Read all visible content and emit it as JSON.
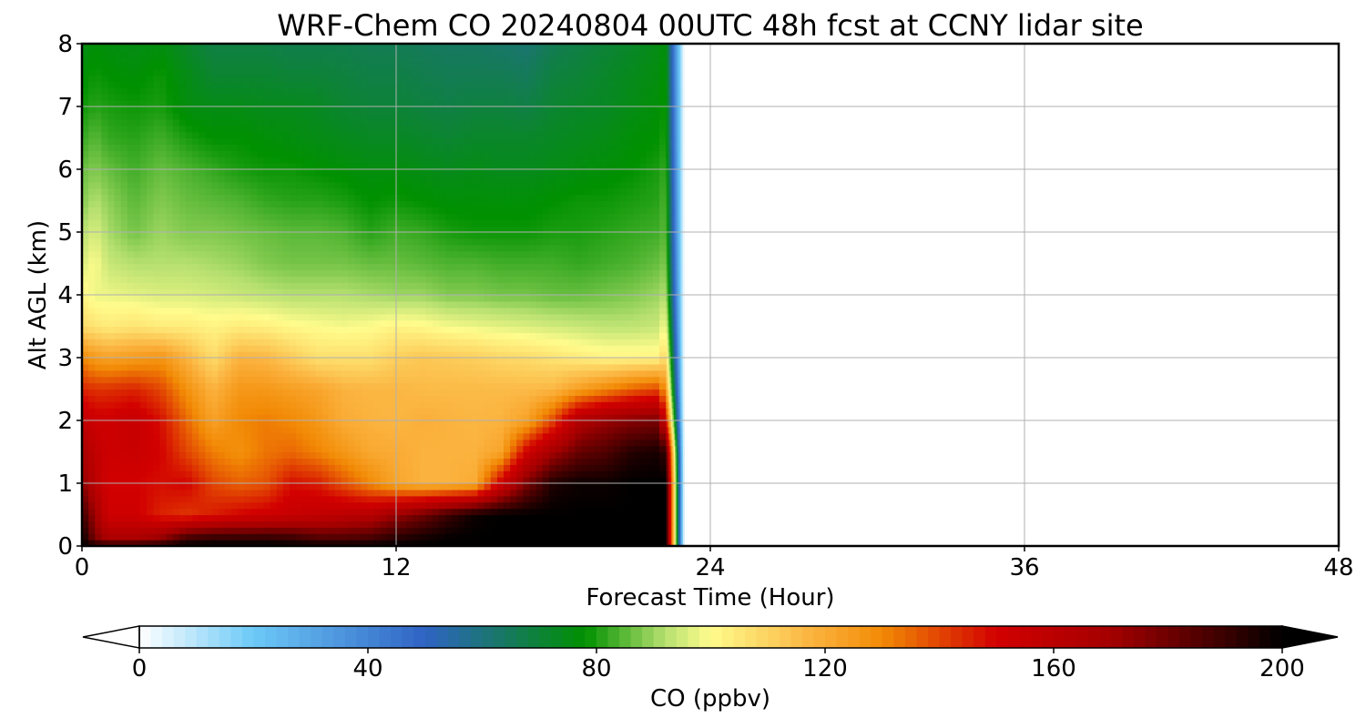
{
  "chart_data": {
    "type": "heatmap",
    "title": "WRF-Chem CO  20240804 00UTC 48h fcst at CCNY lidar site",
    "xlabel": "Forecast Time (Hour)",
    "ylabel": "Alt AGL (km)",
    "xlim": [
      0,
      48
    ],
    "ylim": [
      0,
      8
    ],
    "x_ticks": [
      0,
      12,
      24,
      36,
      48
    ],
    "y_ticks": [
      0,
      1,
      2,
      3,
      4,
      5,
      6,
      7,
      8
    ],
    "grid": true,
    "colorbar": {
      "label": "CO  (ppbv)",
      "range": [
        0,
        200
      ],
      "ticks": [
        0,
        40,
        80,
        120,
        160,
        200
      ],
      "extend": "both",
      "stops": [
        {
          "v": 0,
          "color": "#ffffff"
        },
        {
          "v": 20,
          "color": "#6cc9f7"
        },
        {
          "v": 50,
          "color": "#2f63c4"
        },
        {
          "v": 65,
          "color": "#157a5a"
        },
        {
          "v": 78,
          "color": "#009100"
        },
        {
          "v": 92,
          "color": "#b6e070"
        },
        {
          "v": 100,
          "color": "#fffc8c"
        },
        {
          "v": 118,
          "color": "#fbb23e"
        },
        {
          "v": 130,
          "color": "#f28a05"
        },
        {
          "v": 150,
          "color": "#d20000"
        },
        {
          "v": 170,
          "color": "#a40000"
        },
        {
          "v": 190,
          "color": "#3a0000"
        },
        {
          "v": 200,
          "color": "#000000"
        }
      ]
    },
    "data_end_hour": 23,
    "x_hours": [
      0,
      0.5,
      1,
      2,
      3,
      4,
      5,
      6,
      7,
      8,
      9,
      10,
      11,
      12,
      13,
      14,
      15,
      16,
      17,
      18,
      19,
      20,
      21,
      22,
      22.3
    ],
    "z_km": [
      0,
      0.1,
      0.5,
      1,
      1.5,
      2,
      2.5,
      3,
      3.5,
      4,
      4.5,
      5,
      5.5,
      6,
      6.5,
      7,
      7.5,
      8
    ],
    "values": [
      [
        200,
        200,
        200,
        200,
        200,
        200,
        200,
        200,
        200,
        200,
        200,
        200,
        200,
        200,
        200,
        200,
        200,
        200,
        200,
        200,
        200,
        200,
        200,
        200,
        200
      ],
      [
        200,
        178,
        168,
        168,
        175,
        192,
        195,
        195,
        195,
        193,
        188,
        188,
        190,
        195,
        198,
        200,
        200,
        200,
        200,
        200,
        200,
        200,
        200,
        200,
        200
      ],
      [
        190,
        170,
        152,
        152,
        145,
        142,
        146,
        150,
        152,
        155,
        157,
        160,
        162,
        172,
        180,
        190,
        198,
        200,
        200,
        200,
        200,
        200,
        200,
        200,
        200
      ],
      [
        175,
        160,
        150,
        150,
        148,
        150,
        140,
        136,
        138,
        148,
        146,
        138,
        130,
        122,
        118,
        118,
        120,
        152,
        178,
        195,
        198,
        198,
        200,
        200,
        200
      ],
      [
        168,
        158,
        152,
        154,
        150,
        140,
        132,
        128,
        133,
        135,
        131,
        126,
        121,
        120,
        118,
        118,
        118,
        122,
        152,
        170,
        182,
        186,
        194,
        196,
        190
      ],
      [
        158,
        152,
        152,
        155,
        148,
        135,
        123,
        130,
        132,
        130,
        126,
        120,
        118,
        117,
        119,
        118,
        117,
        118,
        123,
        140,
        165,
        172,
        176,
        178,
        150
      ],
      [
        145,
        143,
        143,
        145,
        140,
        128,
        118,
        126,
        126,
        124,
        122,
        118,
        117,
        117,
        116,
        116,
        116,
        116,
        116,
        117,
        124,
        130,
        136,
        140,
        125
      ],
      [
        130,
        125,
        123,
        125,
        127,
        118,
        108,
        118,
        117,
        112,
        107,
        107,
        107,
        111,
        113,
        112,
        111,
        109,
        108,
        106,
        104,
        102,
        102,
        102,
        110
      ],
      [
        108,
        106,
        104,
        106,
        104,
        104,
        102,
        104,
        103,
        101,
        100,
        99,
        100,
        102,
        101,
        99,
        98,
        97,
        96,
        95,
        94,
        93,
        93,
        94,
        100
      ],
      [
        102,
        98,
        98,
        97,
        96,
        96,
        95,
        94,
        93,
        92,
        92,
        92,
        91,
        90,
        90,
        88,
        88,
        87,
        87,
        86,
        86,
        87,
        88,
        90,
        92
      ],
      [
        96,
        100,
        94,
        92,
        92,
        92,
        91,
        90,
        88,
        87,
        87,
        87,
        86,
        86,
        85,
        84,
        84,
        83,
        83,
        83,
        82,
        83,
        84,
        86,
        88
      ],
      [
        92,
        96,
        91,
        87,
        90,
        88,
        88,
        87,
        86,
        85,
        85,
        84,
        81,
        83,
        82,
        80,
        79,
        79,
        79,
        80,
        80,
        81,
        82,
        83,
        85
      ],
      [
        88,
        92,
        89,
        85,
        88,
        86,
        85,
        84,
        82,
        81,
        81,
        80,
        78,
        79,
        78,
        77,
        77,
        77,
        77,
        78,
        79,
        79,
        80,
        81,
        84
      ],
      [
        86,
        88,
        86,
        83,
        86,
        84,
        82,
        80,
        79,
        79,
        78,
        77,
        76,
        76,
        75,
        74,
        75,
        74,
        74,
        75,
        76,
        77,
        78,
        80,
        82
      ],
      [
        82,
        85,
        82,
        81,
        83,
        80,
        78,
        78,
        77,
        76,
        75,
        74,
        73,
        73,
        72,
        71,
        72,
        72,
        72,
        73,
        74,
        75,
        77,
        78,
        80
      ],
      [
        79,
        81,
        80,
        79,
        80,
        76,
        75,
        75,
        74,
        74,
        73,
        71,
        70,
        70,
        69,
        68,
        69,
        69,
        68,
        71,
        72,
        73,
        75,
        77,
        79
      ],
      [
        77,
        79,
        78,
        77,
        79,
        75,
        71,
        71,
        71,
        70,
        70,
        69,
        68,
        68,
        67,
        66,
        66,
        66,
        65,
        69,
        70,
        72,
        74,
        76,
        78
      ],
      [
        75,
        77,
        76,
        75,
        76,
        72,
        68,
        68,
        68,
        67,
        67,
        67,
        66,
        66,
        65,
        64,
        64,
        63,
        62,
        66,
        68,
        70,
        72,
        75,
        77
      ]
    ]
  }
}
